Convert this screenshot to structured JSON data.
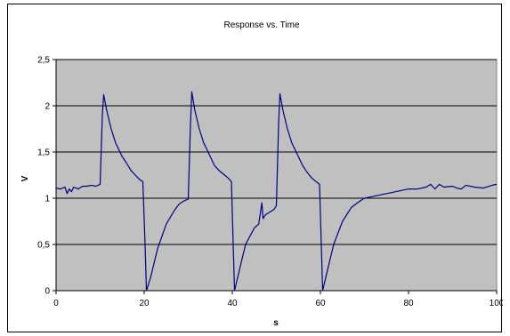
{
  "chart_data": {
    "type": "line",
    "title": "Response vs. Time",
    "xlabel": "s",
    "ylabel": "V",
    "xlim": [
      0,
      100
    ],
    "ylim": [
      0,
      2.5
    ],
    "xticks": [
      "0",
      "20",
      "40",
      "60",
      "80",
      "100"
    ],
    "yticks": [
      "0",
      "0,5",
      "1",
      "1,5",
      "2",
      "2,5"
    ],
    "grid": "horizontal",
    "plot_background": "#c0c0c0",
    "line_color": "#000080",
    "series": [
      {
        "x": [
          0,
          1,
          2,
          2.5,
          3,
          3.5,
          4,
          5,
          6,
          7,
          8,
          9,
          10,
          10.5,
          10.8,
          11.5,
          12.5,
          13.5,
          15,
          16,
          17,
          18,
          19,
          19.7,
          20.2,
          20.5,
          21.5,
          23,
          25,
          27,
          28,
          29,
          30,
          30.5,
          30.8,
          31.5,
          32.5,
          33.5,
          35,
          36,
          37,
          38,
          39,
          39.8,
          40.2,
          40.5,
          41.5,
          43,
          45,
          46,
          46.7,
          47,
          47.5,
          48.5,
          49.5,
          50,
          50.5,
          50.8,
          51.5,
          52.5,
          53.5,
          55,
          56,
          57,
          58,
          59,
          59.8,
          60.2,
          60.5,
          61.5,
          63,
          65,
          67,
          69,
          70,
          72,
          74,
          76,
          78,
          80,
          82,
          84,
          85,
          86,
          87,
          88,
          90,
          91,
          92,
          93,
          95,
          97,
          99,
          100
        ],
        "y": [
          1.11,
          1.1,
          1.12,
          1.05,
          1.1,
          1.07,
          1.12,
          1.1,
          1.13,
          1.13,
          1.14,
          1.13,
          1.15,
          1.9,
          2.12,
          1.95,
          1.75,
          1.6,
          1.45,
          1.38,
          1.3,
          1.25,
          1.2,
          1.18,
          0.5,
          0.0,
          0.15,
          0.45,
          0.72,
          0.88,
          0.94,
          0.97,
          0.99,
          1.8,
          2.15,
          1.95,
          1.75,
          1.6,
          1.45,
          1.35,
          1.3,
          1.26,
          1.22,
          1.18,
          0.5,
          0.0,
          0.2,
          0.5,
          0.68,
          0.72,
          0.95,
          0.78,
          0.82,
          0.85,
          0.88,
          0.92,
          1.8,
          2.13,
          1.95,
          1.75,
          1.6,
          1.45,
          1.35,
          1.28,
          1.22,
          1.18,
          1.15,
          0.5,
          0.0,
          0.2,
          0.5,
          0.75,
          0.9,
          0.97,
          1.0,
          1.02,
          1.04,
          1.06,
          1.08,
          1.1,
          1.1,
          1.12,
          1.15,
          1.1,
          1.15,
          1.12,
          1.13,
          1.11,
          1.1,
          1.14,
          1.12,
          1.11,
          1.14,
          1.15
        ]
      }
    ]
  }
}
